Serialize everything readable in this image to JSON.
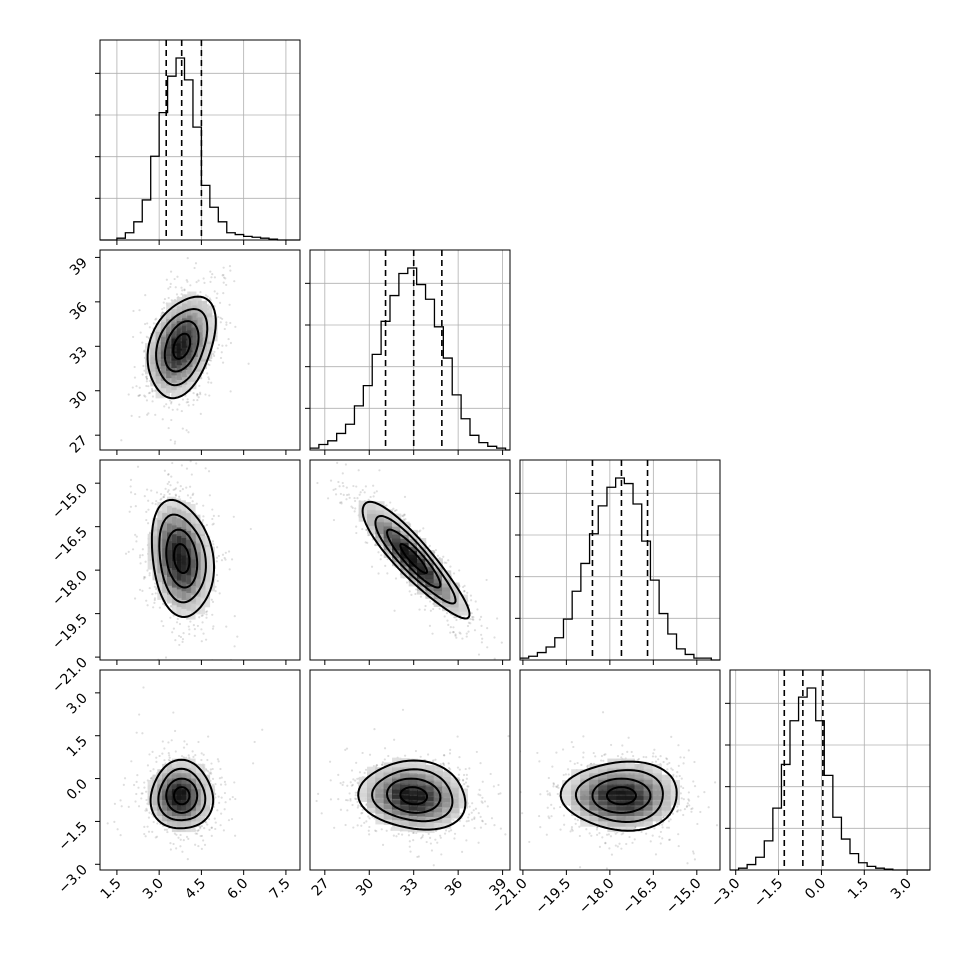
{
  "chart_data": {
    "type": "corner",
    "parameters": [
      {
        "range": [
          0.9,
          8.0
        ],
        "ticks": [
          1.5,
          3.0,
          4.5,
          6.0,
          7.5
        ],
        "tick_labels": [
          "1.5",
          "3.0",
          "4.5",
          "6.0",
          "7.5"
        ],
        "median": 3.8,
        "q16": 3.25,
        "q84": 4.5
      },
      {
        "range": [
          26.0,
          39.5
        ],
        "ticks": [
          27,
          30,
          33,
          36,
          39
        ],
        "tick_labels": [
          "27",
          "30",
          "33",
          "36",
          "39"
        ],
        "median": 33.0,
        "q16": 31.1,
        "q84": 34.9
      },
      {
        "range": [
          -21.1,
          -14.2
        ],
        "ticks": [
          -21.0,
          -19.5,
          -18.0,
          -16.5,
          -15.0
        ],
        "tick_labels": [
          "−21.0",
          "−19.5",
          "−18.0",
          "−16.5",
          "−15.0"
        ],
        "median": -17.6,
        "q16": -18.6,
        "q84": -16.7
      },
      {
        "range": [
          -3.2,
          3.8
        ],
        "ticks": [
          -3.0,
          -1.5,
          0.0,
          1.5,
          3.0
        ],
        "tick_labels": [
          "−3.0",
          "−1.5",
          "0.0",
          "1.5",
          "3.0"
        ],
        "median": -0.65,
        "q16": -1.3,
        "q84": 0.05
      }
    ],
    "histograms": [
      {
        "edges": [
          0.9,
          1.2,
          1.5,
          1.8,
          2.1,
          2.4,
          2.7,
          3.0,
          3.3,
          3.6,
          3.9,
          4.2,
          4.5,
          4.8,
          5.1,
          5.4,
          5.7,
          6.0,
          6.3,
          6.6,
          6.9,
          7.2,
          7.5,
          7.8,
          8.0
        ],
        "counts": [
          0,
          0,
          1,
          4,
          10,
          22,
          46,
          70,
          90,
          100,
          88,
          62,
          30,
          18,
          10,
          4,
          3,
          2,
          1.5,
          1,
          0.5,
          0,
          0,
          0
        ]
      },
      {
        "edges": [
          26.0,
          26.6,
          27.2,
          27.8,
          28.4,
          29.0,
          29.6,
          30.2,
          30.8,
          31.4,
          32.0,
          32.6,
          33.2,
          33.8,
          34.4,
          35.0,
          35.6,
          36.2,
          36.8,
          37.4,
          38.0,
          38.6,
          39.2,
          39.5
        ],
        "counts": [
          1,
          3,
          5,
          9,
          14,
          24,
          35,
          52,
          70,
          84,
          96,
          99,
          90,
          82,
          67,
          50,
          30,
          17,
          8,
          4,
          2,
          1,
          0
        ]
      },
      {
        "edges": [
          -21.1,
          -20.8,
          -20.5,
          -20.2,
          -19.9,
          -19.6,
          -19.3,
          -19.0,
          -18.7,
          -18.4,
          -18.1,
          -17.8,
          -17.5,
          -17.2,
          -16.9,
          -16.6,
          -16.3,
          -16.0,
          -15.7,
          -15.4,
          -15.1,
          -14.8,
          -14.5,
          -14.2
        ],
        "counts": [
          1,
          2,
          4,
          7,
          12,
          22,
          37,
          52,
          68,
          83,
          93,
          98,
          95,
          84,
          64,
          43,
          25,
          14,
          6,
          3,
          1,
          1,
          0
        ]
      },
      {
        "edges": [
          -3.2,
          -2.9,
          -2.6,
          -2.3,
          -2.0,
          -1.7,
          -1.4,
          -1.1,
          -0.8,
          -0.5,
          -0.2,
          0.1,
          0.4,
          0.7,
          1.0,
          1.3,
          1.6,
          1.9,
          2.2,
          2.5,
          2.8,
          3.1,
          3.4,
          3.8
        ],
        "counts": [
          0,
          1,
          3,
          7,
          16,
          34,
          58,
          82,
          95,
          100,
          82,
          52,
          29,
          17,
          9,
          4,
          2,
          1,
          0.5,
          0,
          0,
          0,
          0
        ]
      }
    ],
    "density_2d": [
      {
        "pair": [
          0,
          1
        ],
        "center": [
          3.8,
          33.0
        ],
        "sd": [
          0.6,
          1.7
        ],
        "corr": 0.35
      },
      {
        "pair": [
          0,
          2
        ],
        "center": [
          3.8,
          -17.6
        ],
        "sd": [
          0.55,
          1.0
        ],
        "corr": -0.2
      },
      {
        "pair": [
          1,
          2
        ],
        "center": [
          33.0,
          -17.6
        ],
        "sd": [
          1.8,
          1.0
        ],
        "corr": -0.9
      },
      {
        "pair": [
          0,
          3
        ],
        "center": [
          3.8,
          -0.6
        ],
        "sd": [
          0.55,
          0.6
        ],
        "corr": 0.0
      },
      {
        "pair": [
          1,
          3
        ],
        "center": [
          33.0,
          -0.6
        ],
        "sd": [
          1.8,
          0.6
        ],
        "corr": -0.1
      },
      {
        "pair": [
          2,
          3
        ],
        "center": [
          -17.6,
          -0.6
        ],
        "sd": [
          1.0,
          0.6
        ],
        "corr": 0.0
      }
    ],
    "contour_levels_sigma": [
      0.5,
      1.0,
      1.5,
      2.0
    ],
    "grid": true,
    "title": "",
    "axis_labels": []
  }
}
